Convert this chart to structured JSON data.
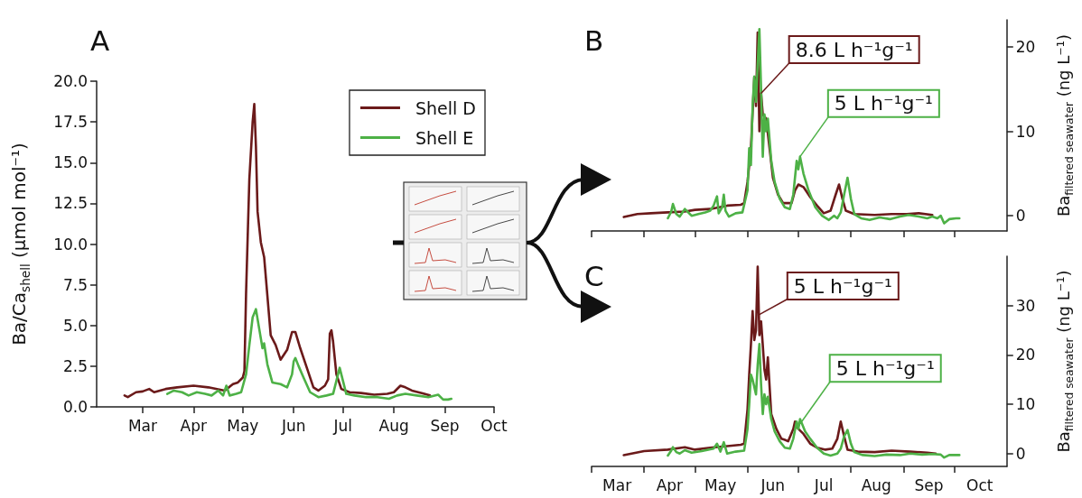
{
  "chart_data": [
    {
      "type": "line",
      "title": "A",
      "ylabel": "Ba/Ca$_{shell}$ (μmol mol⁻¹)",
      "xlim": [
        "--02-01",
        "--10-01"
      ],
      "xticks": [
        {
          "value": "--03-01",
          "label": "Mar"
        },
        {
          "value": "--04-01",
          "label": "Apr"
        },
        {
          "value": "--05-01",
          "label": "May"
        },
        {
          "value": "--06-01",
          "label": "Jun"
        },
        {
          "value": "--07-01",
          "label": "Jul"
        },
        {
          "value": "--08-01",
          "label": "Aug"
        },
        {
          "value": "--09-01",
          "label": "Sep"
        },
        {
          "value": "--10-01",
          "label": "Oct"
        }
      ],
      "ylim": [
        0,
        20
      ],
      "yticks": [
        {
          "value": 0,
          "label": "0.0"
        },
        {
          "value": 2.5,
          "label": "2.5"
        },
        {
          "value": 5,
          "label": "5.0"
        },
        {
          "value": 7.5,
          "label": "7.5"
        },
        {
          "value": 10,
          "label": "10.0"
        },
        {
          "value": 12.5,
          "label": "12.5"
        },
        {
          "value": 15,
          "label": "15.0"
        },
        {
          "value": 17.5,
          "label": "17.5"
        },
        {
          "value": 20,
          "label": "20.0"
        }
      ],
      "legend": "top right",
      "series": [
        {
          "name": "Shell D",
          "color": "#6b1a1a",
          "x": [
            "--02-18",
            "--02-20",
            "--02-25",
            "--03-01",
            "--03-05",
            "--03-08",
            "--03-15",
            "--03-22",
            "--04-01",
            "--04-10",
            "--04-20",
            "--04-25",
            "--04-28",
            "--05-01",
            "--05-02",
            "--05-03",
            "--05-05",
            "--05-07",
            "--05-08",
            "--05-09",
            "--05-10",
            "--05-12",
            "--05-14",
            "--05-18",
            "--05-21",
            "--05-24",
            "--05-28",
            "--05-31",
            "--06-02",
            "--06-05",
            "--06-09",
            "--06-13",
            "--06-16",
            "--06-20",
            "--06-22",
            "--06-23",
            "--06-24",
            "--06-25",
            "--06-27",
            "--06-30",
            "--07-05",
            "--07-12",
            "--07-20",
            "--07-28",
            "--08-01",
            "--08-05",
            "--08-08",
            "--08-12",
            "--08-18",
            "--08-23"
          ],
          "values": [
            0.7,
            0.6,
            0.9,
            0.95,
            1.1,
            0.9,
            1.1,
            1.2,
            1.3,
            1.2,
            1.0,
            1.4,
            1.5,
            1.8,
            2.2,
            7,
            14,
            17.5,
            18.6,
            16,
            12,
            10.1,
            9.2,
            4.4,
            3.8,
            2.9,
            3.5,
            4.6,
            4.6,
            3.6,
            2.4,
            1.2,
            1.0,
            1.3,
            1.7,
            4.5,
            4.7,
            4.0,
            2.0,
            1.1,
            0.9,
            0.85,
            0.75,
            0.8,
            0.9,
            1.3,
            1.2,
            1.0,
            0.85,
            0.7
          ]
        },
        {
          "name": "Shell E",
          "color": "#4db146",
          "x": [
            "--03-16",
            "--03-20",
            "--03-25",
            "--03-29",
            "--04-03",
            "--04-08",
            "--04-12",
            "--04-16",
            "--04-19",
            "--04-21",
            "--04-23",
            "--04-27",
            "--04-30",
            "--05-03",
            "--05-05",
            "--05-07",
            "--05-09",
            "--05-11",
            "--05-13",
            "--05-14",
            "--05-16",
            "--05-19",
            "--05-24",
            "--05-28",
            "--05-31",
            "--06-01",
            "--06-02",
            "--06-04",
            "--06-07",
            "--06-11",
            "--06-16",
            "--06-21",
            "--06-25",
            "--06-27",
            "--06-29",
            "--06-30",
            "--07-03",
            "--07-08",
            "--07-15",
            "--07-22",
            "--07-29",
            "--08-03",
            "--08-08",
            "--08-15",
            "--08-22",
            "--08-28",
            "--08-31",
            "--09-03",
            "--09-05"
          ],
          "values": [
            0.8,
            1.0,
            0.9,
            0.7,
            0.9,
            0.8,
            0.7,
            1.0,
            0.7,
            1.3,
            0.7,
            0.8,
            0.9,
            2.0,
            3.8,
            5.5,
            6.0,
            4.8,
            3.6,
            3.9,
            2.6,
            1.5,
            1.4,
            1.2,
            2.0,
            2.8,
            3.0,
            2.5,
            1.8,
            0.9,
            0.6,
            0.7,
            0.8,
            1.6,
            2.4,
            2.0,
            0.8,
            0.7,
            0.6,
            0.6,
            0.5,
            0.7,
            0.8,
            0.7,
            0.6,
            0.75,
            0.45,
            0.45,
            0.5
          ]
        }
      ]
    },
    {
      "type": "line",
      "title": "B",
      "ylabel": "Ba$_{filtered seawater}$ (ng L⁻¹)",
      "xlim": [
        "--03-01",
        "--11-01"
      ],
      "tick_labels": "y",
      "xticks": [
        {
          "value": "--03-01",
          "label": null
        },
        {
          "value": "--04-01",
          "label": null
        },
        {
          "value": "--05-01",
          "label": null
        },
        {
          "value": "--06-01",
          "label": null
        },
        {
          "value": "--07-01",
          "label": null
        },
        {
          "value": "--08-01",
          "label": null
        },
        {
          "value": "--09-01",
          "label": null
        },
        {
          "value": "--10-01",
          "label": null
        }
      ],
      "ylim": [
        -1.8,
        23.2
      ],
      "yticks": [
        0,
        10,
        20
      ],
      "annotations": [
        {
          "text": "8.6 L h⁻¹g⁻¹",
          "x": "--06-09",
          "y": 14.5
        },
        {
          "text": "5 L h⁻¹g⁻¹",
          "x": "--07-02",
          "y": 7.0
        }
      ],
      "series": [
        {
          "color": "#6b1a1a",
          "x": [
            "--03-20",
            "--03-28",
            "--04-05",
            "--04-15",
            "--04-25",
            "--05-01",
            "--05-10",
            "--05-20",
            "--05-28",
            "--05-30",
            "--06-01",
            "--06-03",
            "--06-05",
            "--06-06",
            "--06-07",
            "--06-08",
            "--06-09",
            "--06-10",
            "--06-12",
            "--06-14",
            "--06-16",
            "--06-19",
            "--06-22",
            "--06-25",
            "--06-27",
            "--06-29",
            "--07-01",
            "--07-04",
            "--07-08",
            "--07-12",
            "--07-16",
            "--07-20",
            "--07-23",
            "--07-25",
            "--07-27",
            "--07-29",
            "--08-03",
            "--08-15",
            "--08-25",
            "--09-03",
            "--09-10",
            "--09-18"
          ],
          "values": [
            -0.15,
            0.2,
            0.3,
            0.4,
            0.5,
            0.7,
            0.8,
            1.2,
            1.3,
            1.5,
            4,
            8,
            16.4,
            13,
            21.7,
            10,
            14.5,
            12,
            11.5,
            8,
            4.5,
            2.5,
            1.5,
            1.5,
            1.5,
            3.0,
            3.7,
            3.4,
            2.2,
            1.2,
            0.3,
            0.6,
            2.5,
            3.7,
            2.0,
            0.6,
            0.2,
            0.1,
            0.2,
            0.2,
            0.3,
            0.1
          ]
        },
        {
          "color": "#4db146",
          "x": [
            "--04-15",
            "--04-17",
            "--04-18",
            "--04-20",
            "--04-22",
            "--04-25",
            "--04-29",
            "--05-03",
            "--05-07",
            "--05-10",
            "--05-12",
            "--05-14",
            "--05-15",
            "--05-17",
            "--05-18",
            "--05-19",
            "--05-21",
            "--05-25",
            "--05-29",
            "--06-01",
            "--06-02",
            "--06-03",
            "--06-04",
            "--06-05",
            "--06-06",
            "--06-07",
            "--06-08",
            "--06-09",
            "--06-10",
            "--06-11",
            "--06-12",
            "--06-13",
            "--06-15",
            "--06-17",
            "--06-20",
            "--06-23",
            "--06-26",
            "--06-28",
            "--06-30",
            "--07-01",
            "--07-02",
            "--07-04",
            "--07-07",
            "--07-11",
            "--07-15",
            "--07-19",
            "--07-22",
            "--07-24",
            "--07-26",
            "--07-28",
            "--07-30",
            "--08-01",
            "--08-03",
            "--08-07",
            "--08-12",
            "--08-18",
            "--08-24",
            "--08-30",
            "--09-04",
            "--09-10",
            "--09-15",
            "--09-18",
            "--09-21",
            "--09-23",
            "--09-25",
            "--09-28",
            "--10-02",
            "--10-04"
          ],
          "values": [
            -0.3,
            0.5,
            1.4,
            0.2,
            -0.1,
            0.8,
            0.0,
            0.2,
            0.4,
            0.6,
            1.2,
            2.3,
            0.3,
            1.0,
            2.5,
            0.6,
            -0.1,
            0.3,
            0.4,
            3.0,
            8.0,
            6.0,
            13,
            16.5,
            13.5,
            18,
            22.1,
            15,
            7.0,
            12,
            10,
            11.5,
            6.5,
            4.0,
            2.0,
            1.0,
            0.8,
            2.5,
            6.5,
            5.5,
            7.0,
            5.0,
            3.0,
            1.0,
            0.0,
            -0.5,
            0.0,
            -0.3,
            0.4,
            2.5,
            4.5,
            2.0,
            0.2,
            -0.3,
            -0.5,
            -0.2,
            -0.4,
            -0.1,
            0.1,
            -0.1,
            -0.3,
            -0.1,
            -0.3,
            0.0,
            -0.9,
            -0.4,
            -0.3,
            -0.3
          ]
        }
      ]
    },
    {
      "type": "line",
      "title": "C",
      "ylabel": "Ba$_{filtered seawater}$ (ng L⁻¹)",
      "xlim": [
        "--03-01",
        "--11-01"
      ],
      "xticks": [
        {
          "value": "--03-01",
          "label": null
        },
        {
          "value": "--04-01",
          "label": null
        },
        {
          "value": "--05-01",
          "label": null
        },
        {
          "value": "--06-01",
          "label": null
        },
        {
          "value": "--07-01",
          "label": null
        },
        {
          "value": "--08-01",
          "label": null
        },
        {
          "value": "--09-01",
          "label": null
        },
        {
          "value": "--10-01",
          "label": null
        },
        {
          "value": "--03-16",
          "label": "Mar"
        },
        {
          "value": "--04-16",
          "label": "Apr"
        },
        {
          "value": "--05-16",
          "label": "May"
        },
        {
          "value": "--06-16",
          "label": "Jun"
        },
        {
          "value": "--07-16",
          "label": "Jul"
        },
        {
          "value": "--08-16",
          "label": "Aug"
        },
        {
          "value": "--09-16",
          "label": "Sep"
        },
        {
          "value": "--10-16",
          "label": "Oct"
        }
      ],
      "ylim": [
        -2.6,
        40
      ],
      "yticks": [
        0,
        10,
        20,
        30
      ],
      "annotations": [
        {
          "text": "5 L h⁻¹g⁻¹",
          "x": "--06-08",
          "y": 28.2
        },
        {
          "text": "5 L h⁻¹g⁻¹",
          "x": "--07-03",
          "y": 6.5
        }
      ],
      "series": [
        {
          "color": "#6b1a1a",
          "x": [
            "--03-20",
            "--04-01",
            "--04-15",
            "--04-25",
            "--05-01",
            "--05-10",
            "--05-20",
            "--05-28",
            "--05-30",
            "--06-01",
            "--06-02",
            "--06-03",
            "--06-04",
            "--06-05",
            "--06-06",
            "--06-07",
            "--06-08",
            "--06-09",
            "--06-10",
            "--06-11",
            "--06-12",
            "--06-13",
            "--06-15",
            "--06-18",
            "--06-21",
            "--06-23",
            "--06-25",
            "--06-28",
            "--06-29",
            "--07-01",
            "--07-04",
            "--07-08",
            "--07-12",
            "--07-17",
            "--07-21",
            "--07-24",
            "--07-26",
            "--07-28",
            "--07-30",
            "--08-05",
            "--08-15",
            "--08-25",
            "--09-05",
            "--09-15",
            "--09-20"
          ],
          "values": [
            -0.3,
            0.5,
            0.8,
            1.3,
            0.8,
            1.2,
            1.5,
            1.8,
            2.0,
            9,
            16,
            22,
            28.9,
            23,
            25,
            37.9,
            24,
            26.8,
            22,
            17,
            15,
            19.5,
            8,
            5.0,
            3.0,
            2.8,
            2.5,
            5.0,
            6.5,
            5.0,
            4.0,
            2.0,
            1.2,
            0.8,
            1.0,
            3.0,
            6.5,
            3.5,
            0.8,
            0.4,
            0.3,
            0.6,
            0.4,
            0.2,
            0.0
          ]
        },
        {
          "color": "#4db146",
          "x": [
            "--04-15",
            "--04-17",
            "--04-18",
            "--04-20",
            "--04-22",
            "--04-25",
            "--04-29",
            "--05-05",
            "--05-12",
            "--05-14",
            "--05-16",
            "--05-18",
            "--05-20",
            "--05-25",
            "--05-30",
            "--06-01",
            "--06-02",
            "--06-03",
            "--06-04",
            "--06-06",
            "--06-07",
            "--06-08",
            "--06-09",
            "--06-10",
            "--06-11",
            "--06-12",
            "--06-13",
            "--06-15",
            "--06-17",
            "--06-20",
            "--06-23",
            "--06-26",
            "--06-28",
            "--06-30",
            "--07-01",
            "--07-02",
            "--07-05",
            "--07-08",
            "--07-12",
            "--07-16",
            "--07-20",
            "--07-24",
            "--07-26",
            "--07-28",
            "--07-30",
            "--08-01",
            "--08-03",
            "--08-08",
            "--08-15",
            "--08-22",
            "--08-30",
            "--09-05",
            "--09-12",
            "--09-18",
            "--09-23",
            "--09-25",
            "--09-28",
            "--10-04"
          ],
          "values": [
            -0.4,
            0.6,
            1.3,
            0.3,
            0.0,
            0.7,
            0.2,
            0.5,
            1.0,
            2.0,
            0.4,
            2.3,
            0.0,
            0.4,
            0.6,
            5,
            10,
            16,
            15,
            12,
            18,
            22.2,
            14,
            8.0,
            12,
            10,
            11.5,
            7,
            4.5,
            2.5,
            1.2,
            1.0,
            3,
            6.5,
            5.0,
            7.0,
            4.5,
            3.0,
            1.2,
            0.0,
            -0.4,
            0.0,
            1.0,
            3.5,
            4.8,
            2.0,
            0.3,
            -0.3,
            -0.5,
            -0.2,
            -0.3,
            0.0,
            -0.2,
            -0.1,
            -0.2,
            -0.8,
            -0.3,
            -0.3
          ]
        }
      ]
    }
  ]
}
